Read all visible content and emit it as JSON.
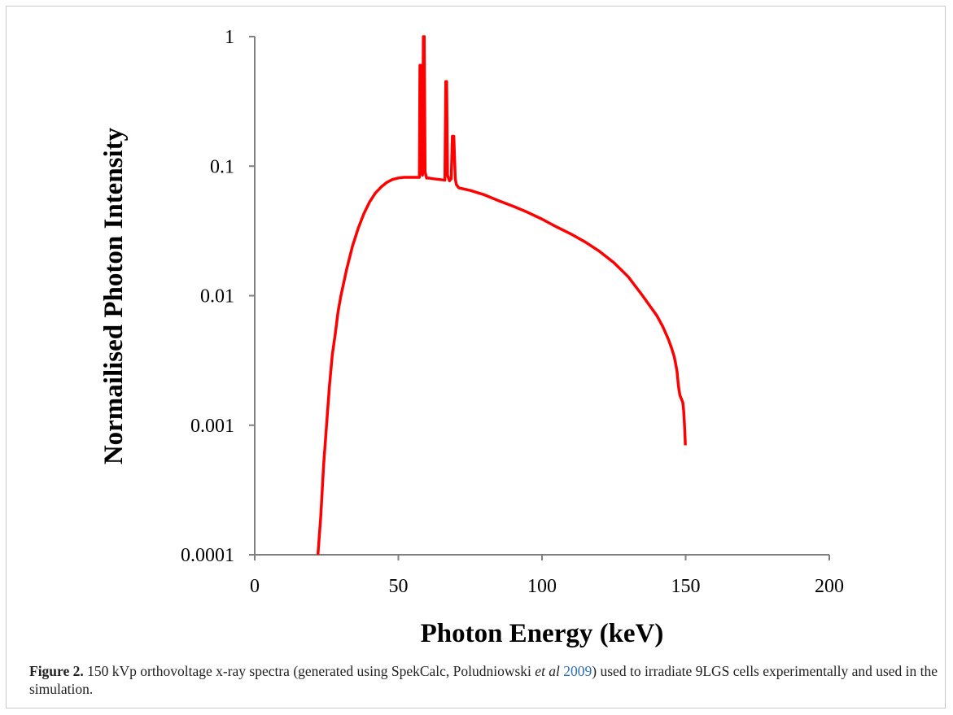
{
  "figure": {
    "caption_label": "Figure 2.",
    "caption_part1": " 150 kVp orthovoltage x-ray spectra (generated using SpekCalc, Poludniowski ",
    "caption_etal": "et al",
    "caption_year": "2009",
    "caption_part2": ") used to irradiate 9LGS cells experimentally and used in the simulation."
  },
  "chart_data": {
    "type": "line",
    "xlabel": "Photon Energy (keV)",
    "ylabel": "Normailised Photon Intensity",
    "xlim": [
      0,
      200
    ],
    "ylim": [
      0.0001,
      1
    ],
    "yscale": "log",
    "grid": false,
    "legend": "none",
    "xticks": [
      0,
      50,
      100,
      150,
      200
    ],
    "xtick_labels": [
      "0",
      "50",
      "100",
      "150",
      "200"
    ],
    "yticks": [
      0.0001,
      0.001,
      0.01,
      0.1,
      1
    ],
    "ytick_labels": [
      "0.0001",
      "0.001",
      "0.01",
      "0.1",
      "1"
    ],
    "line_color": "#ff0000",
    "series": [
      {
        "x": [
          22,
          23,
          24,
          25,
          26,
          27,
          28,
          29,
          30,
          32,
          34,
          36,
          38,
          40,
          42,
          44,
          46,
          48,
          50,
          52,
          54,
          56,
          57.3,
          57.5,
          57.8,
          58.0,
          58.4,
          58.7,
          59.0,
          59.3,
          59.8,
          60.5,
          62,
          64,
          66.2,
          66.5,
          66.8,
          67.1,
          67.8,
          68.4,
          68.8,
          69.3,
          69.8,
          70.2,
          71,
          75,
          80,
          85,
          90,
          95,
          100,
          105,
          110,
          115,
          120,
          125,
          130,
          135,
          140,
          142,
          144,
          145,
          146,
          146.5,
          147,
          147.5,
          148,
          148.5,
          149,
          149.3,
          149.5,
          149.7,
          149.9
        ],
        "y": [
          0.0001,
          0.0002,
          0.0005,
          0.001,
          0.002,
          0.0035,
          0.005,
          0.0075,
          0.01,
          0.016,
          0.024,
          0.033,
          0.043,
          0.053,
          0.062,
          0.069,
          0.075,
          0.079,
          0.081,
          0.082,
          0.082,
          0.082,
          0.082,
          0.6,
          0.6,
          0.09,
          0.085,
          1.0,
          1.0,
          0.09,
          0.081,
          0.081,
          0.08,
          0.079,
          0.078,
          0.45,
          0.45,
          0.085,
          0.077,
          0.08,
          0.17,
          0.17,
          0.08,
          0.072,
          0.068,
          0.065,
          0.06,
          0.054,
          0.049,
          0.044,
          0.039,
          0.034,
          0.03,
          0.026,
          0.022,
          0.018,
          0.014,
          0.01,
          0.007,
          0.0058,
          0.0046,
          0.004,
          0.0034,
          0.003,
          0.0026,
          0.002,
          0.0017,
          0.0016,
          0.0015,
          0.0013,
          0.0011,
          0.0009,
          0.0007
        ]
      }
    ]
  }
}
